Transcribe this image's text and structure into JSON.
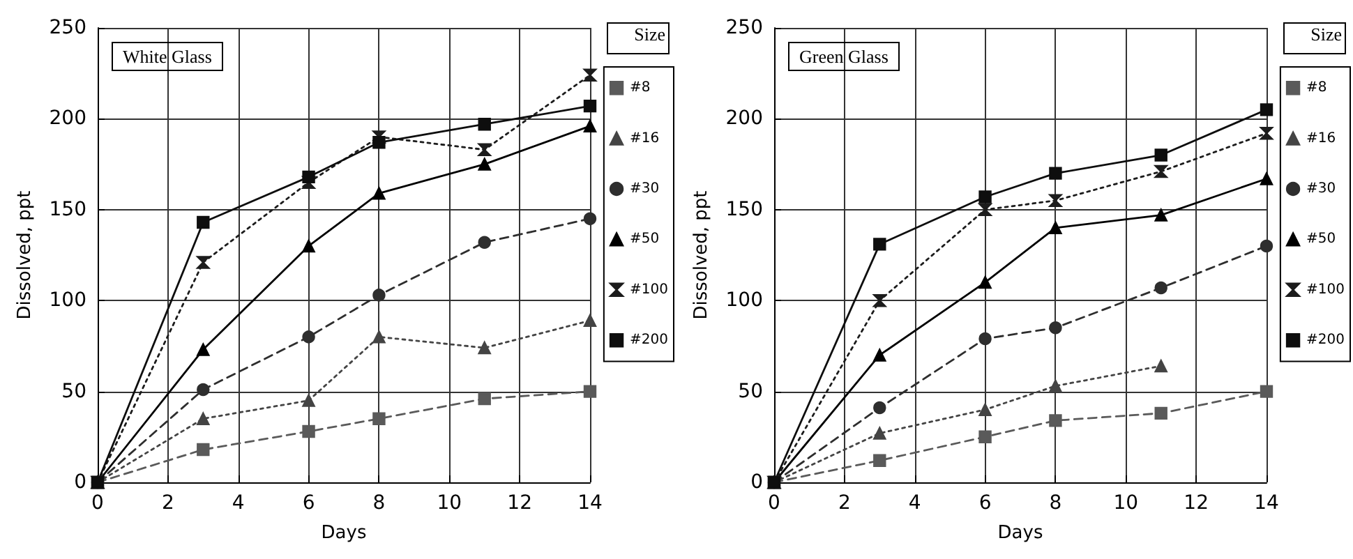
{
  "chart_data": [
    {
      "type": "line",
      "title": "White Glass",
      "xlabel": "Days",
      "ylabel": "Dissolved, ppt",
      "legend_title": "Size",
      "x": [
        0,
        3,
        6,
        8,
        11,
        14
      ],
      "xlim": [
        0,
        14
      ],
      "xticks": [
        0,
        2,
        4,
        6,
        8,
        10,
        12,
        14
      ],
      "ylim": [
        0,
        250
      ],
      "yticks": [
        0,
        50,
        100,
        150,
        200,
        250
      ],
      "grid": true,
      "legend": "right",
      "series": [
        {
          "name": "#8",
          "color": "#5a5a5a",
          "marker": "square",
          "line_style": "dashed",
          "values": [
            0,
            18,
            28,
            35,
            46,
            50
          ]
        },
        {
          "name": "#16",
          "color": "#444444",
          "marker": "triangle",
          "line_style": "dotted",
          "values": [
            0,
            35,
            45,
            80,
            74,
            89
          ]
        },
        {
          "name": "#30",
          "color": "#2e2e2e",
          "marker": "circle",
          "line_style": "dashed",
          "values": [
            0,
            51,
            80,
            103,
            132,
            145
          ]
        },
        {
          "name": "#50",
          "color": "#000000",
          "marker": "triangle",
          "line_style": "solid",
          "values": [
            0,
            73,
            130,
            159,
            175,
            196
          ]
        },
        {
          "name": "#100",
          "color": "#1c1c1c",
          "marker": "cross",
          "line_style": "dotted",
          "values": [
            0,
            121,
            165,
            190,
            183,
            224
          ]
        },
        {
          "name": "#200",
          "color": "#0e0e0e",
          "marker": "square",
          "line_style": "solid",
          "values": [
            0,
            143,
            168,
            187,
            197,
            207
          ]
        }
      ]
    },
    {
      "type": "line",
      "title": "Green Glass",
      "xlabel": "Days",
      "ylabel": "Dissolved, ppt",
      "legend_title": "Size",
      "x": [
        0,
        3,
        6,
        8,
        11,
        14
      ],
      "xlim": [
        0,
        14
      ],
      "xticks": [
        0,
        2,
        4,
        6,
        8,
        10,
        12,
        14
      ],
      "ylim": [
        0,
        250
      ],
      "yticks": [
        0,
        50,
        100,
        150,
        200,
        250
      ],
      "grid": true,
      "legend": "right",
      "series": [
        {
          "name": "#8",
          "color": "#5a5a5a",
          "marker": "square",
          "line_style": "dashed",
          "values": [
            0,
            12,
            25,
            34,
            38,
            50
          ]
        },
        {
          "name": "#16",
          "color": "#444444",
          "marker": "triangle",
          "line_style": "dotted",
          "values": [
            0,
            27,
            40,
            53,
            64,
            null
          ]
        },
        {
          "name": "#30",
          "color": "#2e2e2e",
          "marker": "circle",
          "line_style": "dashed",
          "values": [
            0,
            41,
            79,
            85,
            107,
            130
          ]
        },
        {
          "name": "#50",
          "color": "#000000",
          "marker": "triangle",
          "line_style": "solid",
          "values": [
            0,
            70,
            110,
            140,
            147,
            167
          ]
        },
        {
          "name": "#100",
          "color": "#1c1c1c",
          "marker": "cross",
          "line_style": "dotted",
          "values": [
            0,
            100,
            150,
            155,
            171,
            192
          ]
        },
        {
          "name": "#200",
          "color": "#0e0e0e",
          "marker": "square",
          "line_style": "solid",
          "values": [
            0,
            131,
            157,
            170,
            180,
            205
          ]
        }
      ]
    }
  ]
}
